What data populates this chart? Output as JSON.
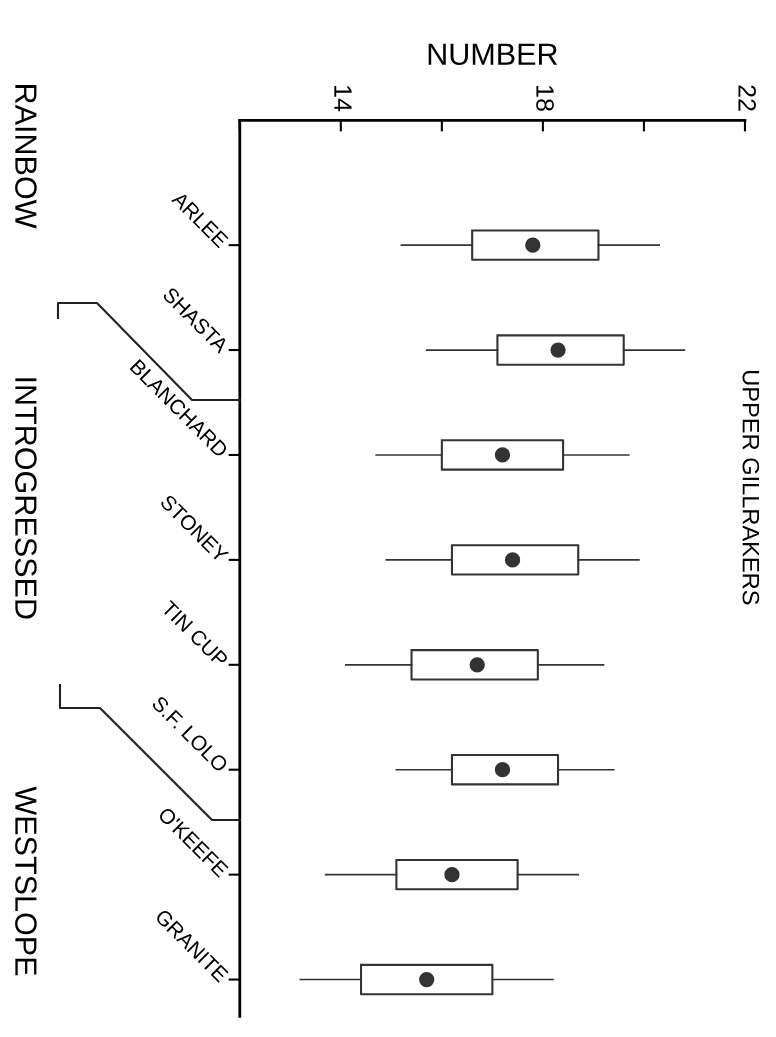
{
  "chart_data": {
    "type": "box",
    "orientation": "horizontal",
    "title": "UPPER GILLRAKERS",
    "xlabel": "NUMBER",
    "categories": [
      "ARLEE",
      "SHASTA",
      "BLANCHARD",
      "STONEY",
      "TIN CUP",
      "S.F. LOLO",
      "O'KEEFE",
      "GRANITE"
    ],
    "boxes": [
      {
        "low": 15.2,
        "q1": 16.6,
        "median": 17.8,
        "q3": 19.1,
        "high": 20.3
      },
      {
        "low": 15.7,
        "q1": 17.1,
        "median": 18.3,
        "q3": 19.6,
        "high": 20.8
      },
      {
        "low": 14.7,
        "q1": 16.0,
        "median": 17.2,
        "q3": 18.4,
        "high": 19.7
      },
      {
        "low": 14.9,
        "q1": 16.2,
        "median": 17.4,
        "q3": 18.7,
        "high": 19.9
      },
      {
        "low": 14.1,
        "q1": 15.4,
        "median": 16.7,
        "q3": 17.9,
        "high": 19.2
      },
      {
        "low": 15.1,
        "q1": 16.2,
        "median": 17.2,
        "q3": 18.3,
        "high": 19.4
      },
      {
        "low": 13.7,
        "q1": 15.1,
        "median": 16.2,
        "q3": 17.5,
        "high": 18.7
      },
      {
        "low": 13.2,
        "q1": 14.4,
        "median": 15.7,
        "q3": 17.0,
        "high": 18.2
      }
    ],
    "color": "#333333",
    "marker": "circle",
    "grid": false,
    "xlim": [
      12,
      22
    ],
    "xticks": [
      {
        "value": 12,
        "label": null
      },
      14,
      {
        "value": 16,
        "label": null
      },
      18,
      {
        "value": 20,
        "label": null
      },
      22
    ],
    "annotations": [
      "RAINBOW",
      "INTROGRESSED",
      "WESTSLOPE"
    ]
  }
}
